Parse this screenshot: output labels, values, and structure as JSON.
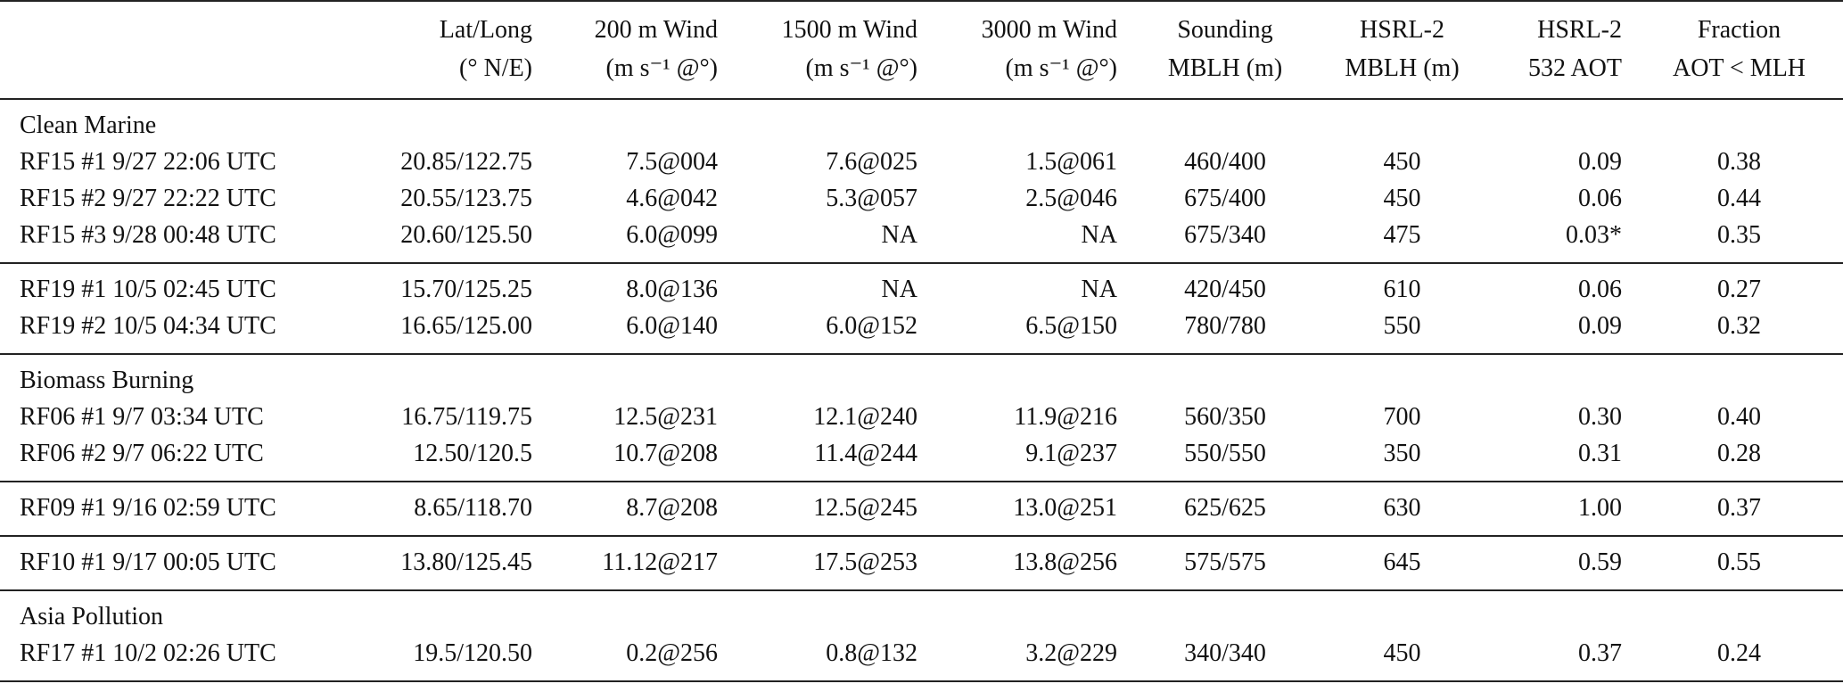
{
  "table": {
    "columns": [
      [],
      [
        "Lat/Long",
        "(° N/E)"
      ],
      [
        "200 m Wind",
        "(m s⁻¹ @°)"
      ],
      [
        "1500 m Wind",
        "(m s⁻¹ @°)"
      ],
      [
        "3000 m Wind",
        "(m s⁻¹ @°)"
      ],
      [
        "Sounding",
        "MBLH (m)"
      ],
      [
        "HSRL-2",
        "MBLH (m)"
      ],
      [
        "HSRL-2",
        "532 AOT"
      ],
      [
        "Fraction",
        "AOT < MLH"
      ]
    ],
    "blocks": [
      {
        "section": "Clean Marine",
        "rows": [
          [
            "RF15 #1 9/27 22:06 UTC",
            "20.85/122.75",
            "7.5@004",
            "7.6@025",
            "1.5@061",
            "460/400",
            "450",
            "0.09",
            "0.38"
          ],
          [
            "RF15 #2 9/27 22:22 UTC",
            "20.55/123.75",
            "4.6@042",
            "5.3@057",
            "2.5@046",
            "675/400",
            "450",
            "0.06",
            "0.44"
          ],
          [
            "RF15 #3 9/28 00:48 UTC",
            "20.60/125.50",
            "6.0@099",
            "NA",
            "NA",
            "675/340",
            "475",
            "0.03*",
            "0.35"
          ]
        ]
      },
      {
        "rows": [
          [
            "RF19 #1 10/5 02:45 UTC",
            "15.70/125.25",
            "8.0@136",
            "NA",
            "NA",
            "420/450",
            "610",
            "0.06",
            "0.27"
          ],
          [
            "RF19 #2 10/5 04:34 UTC",
            "16.65/125.00",
            "6.0@140",
            "6.0@152",
            "6.5@150",
            "780/780",
            "550",
            "0.09",
            "0.32"
          ]
        ]
      },
      {
        "section": "Biomass Burning",
        "rows": [
          [
            "RF06 #1 9/7 03:34 UTC",
            "16.75/119.75",
            "12.5@231",
            "12.1@240",
            "11.9@216",
            "560/350",
            "700",
            "0.30",
            "0.40"
          ],
          [
            "RF06 #2 9/7 06:22 UTC",
            "12.50/120.5",
            "10.7@208",
            "11.4@244",
            "9.1@237",
            "550/550",
            "350",
            "0.31",
            "0.28"
          ]
        ]
      },
      {
        "rows": [
          [
            "RF09 #1 9/16 02:59 UTC",
            "8.65/118.70",
            "8.7@208",
            "12.5@245",
            "13.0@251",
            "625/625",
            "630",
            "1.00",
            "0.37"
          ]
        ]
      },
      {
        "rows": [
          [
            "RF10 #1 9/17 00:05 UTC",
            "13.80/125.45",
            "11.12@217",
            "17.5@253",
            "13.8@256",
            "575/575",
            "645",
            "0.59",
            "0.55"
          ]
        ]
      },
      {
        "section": "Asia Pollution",
        "rows": [
          [
            "RF17 #1 10/2 02:26 UTC",
            "19.5/120.50",
            "0.2@256",
            "0.8@132",
            "3.2@229",
            "340/340",
            "450",
            "0.37",
            "0.24"
          ]
        ]
      }
    ]
  }
}
